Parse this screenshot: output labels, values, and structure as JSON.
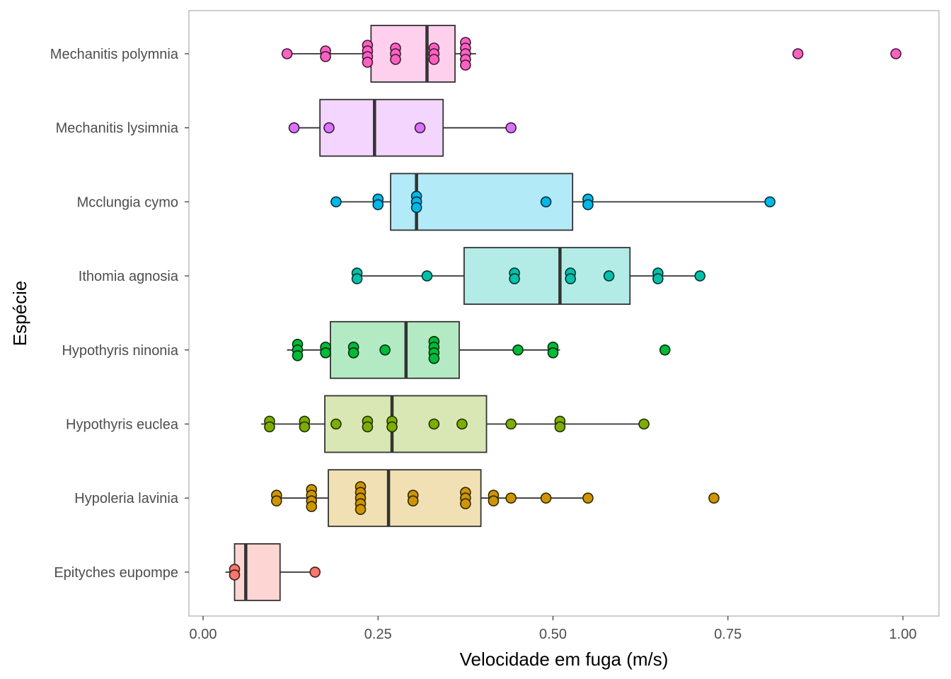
{
  "chart_data": {
    "type": "boxplot",
    "xlabel": "Velocidade em fuga (m/s)",
    "ylabel": "Espécie",
    "xlim": [
      -0.02,
      1.07
    ],
    "x_ticks": [
      0,
      0.25,
      0.5,
      0.75,
      1
    ],
    "x_tick_labels": [
      "0.00",
      "0.25",
      "0.50",
      "0.75",
      "1.00"
    ],
    "grid": false,
    "legend": "none",
    "categories": [
      "Mechanitis polymnia",
      "Mechanitis lysimnia",
      "Mcclungia cymo",
      "Ithomia agnosia",
      "Hypothyris ninonia",
      "Hypothyris euclea",
      "Hypoleria lavinia",
      "Epityches eupompe"
    ],
    "series": [
      {
        "name": "Mechanitis polymnia",
        "color": "#FF61C3",
        "box": {
          "whisker_low": 0.12,
          "q1": 0.24,
          "median": 0.32,
          "q3": 0.36,
          "whisker_high": 0.39
        },
        "points": [
          0.12,
          0.175,
          0.175,
          0.235,
          0.235,
          0.235,
          0.235,
          0.275,
          0.275,
          0.275,
          0.33,
          0.33,
          0.33,
          0.375,
          0.375,
          0.375,
          0.375,
          0.375,
          0.85,
          0.99
        ]
      },
      {
        "name": "Mechanitis lysimnia",
        "color": "#DB72FB",
        "box": {
          "whisker_low": 0.13,
          "q1": 0.167,
          "median": 0.245,
          "q3": 0.343,
          "whisker_high": 0.44
        },
        "points": [
          0.13,
          0.18,
          0.31,
          0.44
        ]
      },
      {
        "name": "Mcclungia cymo",
        "color": "#00B8E7",
        "box": {
          "whisker_low": 0.19,
          "q1": 0.268,
          "median": 0.305,
          "q3": 0.528,
          "whisker_high": 0.81
        },
        "points": [
          0.19,
          0.25,
          0.25,
          0.305,
          0.305,
          0.305,
          0.49,
          0.55,
          0.55,
          0.81
        ]
      },
      {
        "name": "Ithomia agnosia",
        "color": "#00C1AA",
        "box": {
          "whisker_low": 0.22,
          "q1": 0.373,
          "median": 0.51,
          "q3": 0.61,
          "whisker_high": 0.71
        },
        "points": [
          0.22,
          0.22,
          0.32,
          0.445,
          0.445,
          0.525,
          0.525,
          0.58,
          0.65,
          0.65,
          0.71
        ]
      },
      {
        "name": "Hypothyris ninonia",
        "color": "#00BA38",
        "box": {
          "whisker_low": 0.12,
          "q1": 0.182,
          "median": 0.29,
          "q3": 0.366,
          "whisker_high": 0.51
        },
        "points": [
          0.135,
          0.135,
          0.135,
          0.175,
          0.175,
          0.215,
          0.215,
          0.26,
          0.33,
          0.33,
          0.33,
          0.33,
          0.45,
          0.5,
          0.5,
          0.66
        ]
      },
      {
        "name": "Hypothyris euclea",
        "color": "#7CAE00",
        "box": {
          "whisker_low": 0.083,
          "q1": 0.174,
          "median": 0.27,
          "q3": 0.405,
          "whisker_high": 0.63
        },
        "points": [
          0.095,
          0.095,
          0.145,
          0.145,
          0.19,
          0.235,
          0.235,
          0.27,
          0.27,
          0.33,
          0.37,
          0.44,
          0.51,
          0.51,
          0.63
        ]
      },
      {
        "name": "Hypoleria lavinia",
        "color": "#CD9600",
        "box": {
          "whisker_low": 0.105,
          "q1": 0.179,
          "median": 0.265,
          "q3": 0.397,
          "whisker_high": 0.55
        },
        "points": [
          0.105,
          0.105,
          0.155,
          0.155,
          0.155,
          0.155,
          0.225,
          0.225,
          0.225,
          0.225,
          0.225,
          0.3,
          0.3,
          0.375,
          0.375,
          0.375,
          0.415,
          0.415,
          0.44,
          0.49,
          0.55,
          0.73
        ]
      },
      {
        "name": "Epityches eupompe",
        "color": "#F8766D",
        "box": {
          "whisker_low": 0.032,
          "q1": 0.045,
          "median": 0.061,
          "q3": 0.11,
          "whisker_high": 0.16
        },
        "points": [
          0.045,
          0.045,
          0.16
        ]
      }
    ]
  }
}
